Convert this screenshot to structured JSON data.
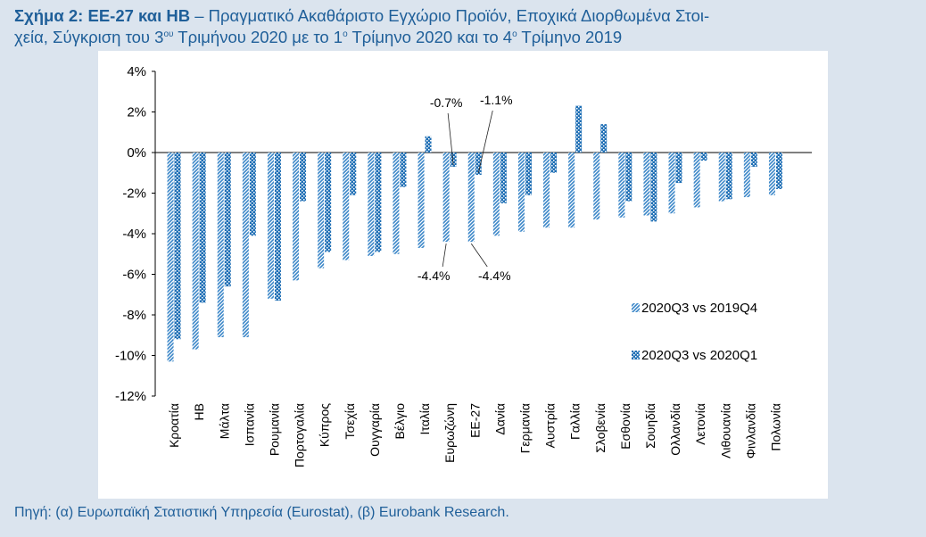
{
  "figure": {
    "title_bold": "Σχήμα 2: ΕΕ-27 και ΗΒ",
    "title_line1": " – Πραγματικό Ακαθάριστο Εγχώριο Προϊόν, Εποχικά Διορθωμένα Στοι-",
    "title_line2_a": "χεία, Σύγκριση του 3",
    "title_sup1": "ου",
    "title_line2_b": " Τριμήνου 2020 με το 1",
    "title_sup2": "ο",
    "title_line2_c": " Τρίμηνο 2020 και το 4",
    "title_sup3": "ο",
    "title_line2_d": " Τρίμηνο 2019",
    "source": "Πηγή: (α) Ευρωπαϊκή Στατιστική Υπηρεσία (Eurostat), (β) Eurobank Research."
  },
  "chart_data": {
    "type": "bar",
    "categories": [
      "Κροατία",
      "ΗΒ",
      "Μάλτα",
      "Ισπανία",
      "Ρουμανία",
      "Πορτογαλία",
      "Κύπρος",
      "Τσεχία",
      "Ουγγαρία",
      "Βέλγιο",
      "Ιταλία",
      "Ευρωζώνη",
      "ΕΕ-27",
      "Δανία",
      "Γερμανία",
      "Αυστρία",
      "Γαλλία",
      "Σλοβενία",
      "Εσθονία",
      "Σουηδία",
      "Ολλανδία",
      "Λετονία",
      "Λιθουανία",
      "Φινλανδία",
      "Πολωνία"
    ],
    "series": [
      {
        "name": "2020Q3 vs 2019Q4",
        "color": "#3a86c8",
        "values": [
          -10.3,
          -9.7,
          -9.1,
          -9.1,
          -7.2,
          -6.3,
          -5.7,
          -5.3,
          -5.1,
          -5.0,
          -4.7,
          -4.4,
          -4.4,
          -4.1,
          -3.9,
          -3.7,
          -3.7,
          -3.3,
          -3.2,
          -3.1,
          -3.0,
          -2.7,
          -2.4,
          -2.2,
          -2.1
        ]
      },
      {
        "name": "2020Q3 vs 2020Q1",
        "color": "#1f6fb5",
        "values": [
          -9.2,
          -7.4,
          -6.6,
          -4.1,
          -7.3,
          -2.4,
          -4.9,
          -2.1,
          -4.9,
          -1.7,
          0.8,
          -0.7,
          -1.1,
          -2.5,
          -2.1,
          -1.0,
          2.3,
          1.4,
          -2.4,
          -3.4,
          -1.5,
          -0.4,
          -2.3,
          -0.7,
          -1.8
        ]
      }
    ],
    "ylim": [
      -12,
      4
    ],
    "yticks": [
      "4%",
      "2%",
      "0%",
      "-2%",
      "-4%",
      "-6%",
      "-8%",
      "-10%",
      "-12%"
    ],
    "annotations": [
      "-0.7%",
      "-1.1%",
      "-4.4%",
      "-4.4%"
    ],
    "legend_position": "right"
  }
}
